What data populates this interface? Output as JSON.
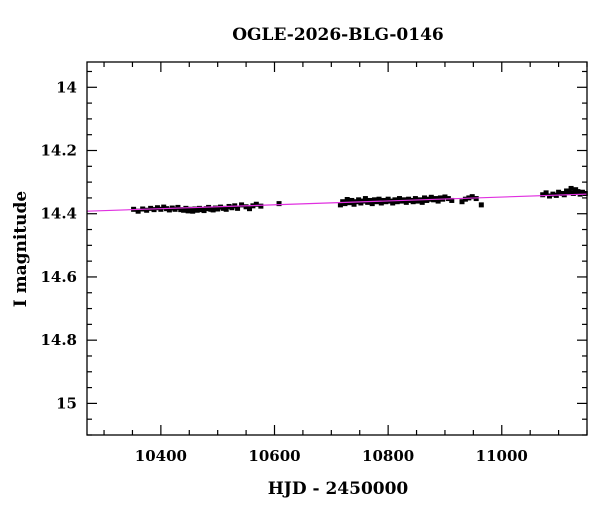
{
  "chart_data": {
    "type": "scatter",
    "title": "OGLE-2026-BLG-0146",
    "xlabel": "HJD - 2450000",
    "ylabel": "I magnitude",
    "xlim": [
      10270,
      11150
    ],
    "ylim": [
      15.1,
      13.92
    ],
    "y_inverted": true,
    "grid": false,
    "x_ticks": [
      10400,
      10600,
      10800,
      11000
    ],
    "x_tick_labels": [
      "10400",
      "10600",
      "10800",
      "11000"
    ],
    "y_ticks": [
      14.0,
      14.2,
      14.4,
      14.6,
      14.8,
      15.0
    ],
    "y_tick_labels": [
      "14",
      "14.2",
      "14.4",
      "14.6",
      "14.8",
      "15"
    ],
    "colors": {
      "points": "#000000",
      "model": "#e030e0",
      "frame": "#000000"
    },
    "series": [
      {
        "points": [
          [
            10352,
            14.386
          ],
          [
            10360,
            14.392
          ],
          [
            10368,
            14.385
          ],
          [
            10375,
            14.389
          ],
          [
            10382,
            14.383
          ],
          [
            10388,
            14.387
          ],
          [
            10394,
            14.381
          ],
          [
            10400,
            14.386
          ],
          [
            10405,
            14.379
          ],
          [
            10410,
            14.384
          ],
          [
            10415,
            14.388
          ],
          [
            10420,
            14.382
          ],
          [
            10425,
            14.386
          ],
          [
            10430,
            14.38
          ],
          [
            10435,
            14.387
          ],
          [
            10440,
            14.389
          ],
          [
            10444,
            14.383
          ],
          [
            10448,
            14.391
          ],
          [
            10452,
            14.386
          ],
          [
            10456,
            14.392
          ],
          [
            10460,
            14.385
          ],
          [
            10464,
            14.389
          ],
          [
            10468,
            14.383
          ],
          [
            10472,
            14.387
          ],
          [
            10476,
            14.39
          ],
          [
            10480,
            14.384
          ],
          [
            10484,
            14.38
          ],
          [
            10488,
            14.386
          ],
          [
            10492,
            14.388
          ],
          [
            10496,
            14.382
          ],
          [
            10500,
            14.385
          ],
          [
            10505,
            14.379
          ],
          [
            10510,
            14.383
          ],
          [
            10515,
            14.386
          ],
          [
            10520,
            14.377
          ],
          [
            10525,
            14.381
          ],
          [
            10530,
            14.375
          ],
          [
            10535,
            14.383
          ],
          [
            10542,
            14.372
          ],
          [
            10550,
            14.378
          ],
          [
            10556,
            14.384
          ],
          [
            10562,
            14.375
          ],
          [
            10568,
            14.37
          ],
          [
            10576,
            14.376
          ],
          [
            10608,
            14.368
          ],
          [
            10716,
            14.372
          ],
          [
            10720,
            14.362
          ],
          [
            10724,
            14.368
          ],
          [
            10728,
            14.355
          ],
          [
            10732,
            14.365
          ],
          [
            10736,
            14.358
          ],
          [
            10740,
            14.37
          ],
          [
            10744,
            14.362
          ],
          [
            10748,
            14.356
          ],
          [
            10752,
            14.366
          ],
          [
            10756,
            14.36
          ],
          [
            10760,
            14.352
          ],
          [
            10764,
            14.364
          ],
          [
            10768,
            14.358
          ],
          [
            10772,
            14.368
          ],
          [
            10776,
            14.356
          ],
          [
            10780,
            14.362
          ],
          [
            10784,
            14.354
          ],
          [
            10788,
            14.366
          ],
          [
            10792,
            14.358
          ],
          [
            10796,
            14.362
          ],
          [
            10800,
            14.354
          ],
          [
            10804,
            14.36
          ],
          [
            10808,
            14.366
          ],
          [
            10812,
            14.356
          ],
          [
            10816,
            14.362
          ],
          [
            10820,
            14.352
          ],
          [
            10824,
            14.36
          ],
          [
            10828,
            14.356
          ],
          [
            10832,
            14.364
          ],
          [
            10836,
            14.354
          ],
          [
            10840,
            14.358
          ],
          [
            10844,
            14.362
          ],
          [
            10848,
            14.352
          ],
          [
            10852,
            14.36
          ],
          [
            10856,
            14.356
          ],
          [
            10860,
            14.364
          ],
          [
            10864,
            14.35
          ],
          [
            10868,
            14.358
          ],
          [
            10872,
            14.354
          ],
          [
            10876,
            14.348
          ],
          [
            10880,
            14.356
          ],
          [
            10884,
            14.352
          ],
          [
            10888,
            14.36
          ],
          [
            10892,
            14.35
          ],
          [
            10896,
            14.354
          ],
          [
            10900,
            14.347
          ],
          [
            10906,
            14.352
          ],
          [
            10912,
            14.358
          ],
          [
            10930,
            14.362
          ],
          [
            10936,
            14.354
          ],
          [
            10942,
            14.35
          ],
          [
            10948,
            14.346
          ],
          [
            10955,
            14.352
          ],
          [
            10964,
            14.372
          ],
          [
            11072,
            14.34
          ],
          [
            11078,
            14.334
          ],
          [
            11084,
            14.344
          ],
          [
            11090,
            14.338
          ],
          [
            11096,
            14.342
          ],
          [
            11100,
            14.332
          ],
          [
            11106,
            14.336
          ],
          [
            11110,
            14.34
          ],
          [
            11114,
            14.328
          ],
          [
            11118,
            14.333
          ],
          [
            11122,
            14.32
          ],
          [
            11126,
            14.336
          ],
          [
            11130,
            14.324
          ],
          [
            11134,
            14.33
          ],
          [
            11138,
            14.338
          ],
          [
            11142,
            14.332
          ],
          [
            11147,
            14.336
          ]
        ]
      }
    ],
    "model_line": [
      [
        10270,
        14.392
      ],
      [
        11150,
        14.338
      ]
    ]
  }
}
